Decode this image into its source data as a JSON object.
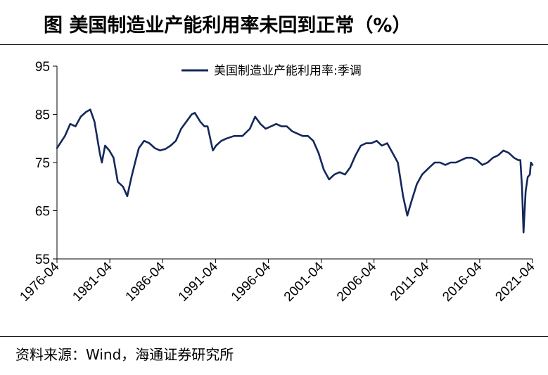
{
  "header": {
    "title": "图  美国制造业产能利用率未回到正常（%）"
  },
  "footer": {
    "source": "资料来源：Wind，海通证券研究所"
  },
  "colors": {
    "series": "#14285a",
    "axis": "#000000",
    "background": "#ffffff"
  },
  "chart_data": {
    "type": "line",
    "title": "美国制造业产能利用率未回到正常（%）",
    "xlabel": "",
    "ylabel": "",
    "ylim": [
      55,
      95
    ],
    "yticks": [
      55,
      65,
      75,
      85,
      95
    ],
    "xlim": [
      1976.25,
      2021.25
    ],
    "xticks": [
      "1976-04",
      "1981-04",
      "1986-04",
      "1991-04",
      "1996-04",
      "2001-04",
      "2006-04",
      "2011-04",
      "2016-04",
      "2021-04"
    ],
    "legend": {
      "position": "top-center"
    },
    "grid": false,
    "series": [
      {
        "name": "美国制造业产能利用率:季调",
        "x": [
          1976.25,
          1977.0,
          1977.5,
          1978.0,
          1978.5,
          1979.0,
          1979.4,
          1979.8,
          1980.3,
          1980.5,
          1980.8,
          1981.2,
          1981.6,
          1982.0,
          1982.5,
          1982.9,
          1983.3,
          1983.7,
          1984.0,
          1984.5,
          1985.0,
          1985.5,
          1986.0,
          1986.5,
          1987.0,
          1987.5,
          1988.0,
          1988.5,
          1989.0,
          1989.3,
          1989.8,
          1990.2,
          1990.5,
          1991.0,
          1991.3,
          1991.8,
          1992.3,
          1993.0,
          1993.8,
          1994.5,
          1995.0,
          1995.5,
          1996.0,
          1996.5,
          1997.0,
          1997.5,
          1998.0,
          1998.5,
          1999.0,
          1999.5,
          2000.0,
          2000.5,
          2001.0,
          2001.5,
          2002.0,
          2002.5,
          2003.0,
          2003.5,
          2004.0,
          2004.5,
          2005.0,
          2005.5,
          2006.0,
          2006.5,
          2007.0,
          2007.5,
          2008.0,
          2008.5,
          2009.0,
          2009.4,
          2009.8,
          2010.3,
          2010.8,
          2011.5,
          2012.0,
          2012.5,
          2013.0,
          2013.5,
          2014.0,
          2014.5,
          2015.0,
          2015.5,
          2016.0,
          2016.5,
          2017.0,
          2017.5,
          2018.0,
          2018.5,
          2019.0,
          2019.5,
          2019.9,
          2020.1,
          2020.25,
          2020.4,
          2020.6,
          2020.8,
          2021.0,
          2021.1,
          2021.25
        ],
        "values": [
          78.0,
          80.5,
          83.0,
          82.5,
          84.5,
          85.5,
          86.0,
          83.5,
          77.0,
          75.0,
          78.5,
          77.5,
          76.0,
          71.0,
          70.0,
          68.0,
          72.0,
          75.5,
          78.0,
          79.5,
          79.0,
          78.0,
          77.5,
          77.8,
          78.5,
          79.5,
          82.0,
          83.5,
          85.0,
          85.3,
          83.5,
          82.5,
          82.5,
          77.5,
          78.5,
          79.5,
          80.0,
          80.5,
          80.5,
          82.0,
          84.5,
          83.0,
          82.0,
          82.5,
          83.0,
          82.5,
          82.5,
          81.5,
          81.0,
          80.5,
          80.5,
          79.5,
          77.0,
          73.5,
          71.5,
          72.5,
          73.0,
          72.5,
          74.0,
          76.5,
          78.5,
          79.0,
          79.0,
          79.5,
          78.5,
          79.0,
          77.0,
          75.0,
          68.0,
          64.0,
          67.0,
          70.5,
          72.5,
          74.0,
          75.0,
          75.0,
          74.5,
          75.0,
          75.0,
          75.5,
          76.0,
          76.0,
          75.5,
          74.5,
          75.0,
          76.0,
          76.5,
          77.5,
          77.0,
          76.0,
          75.5,
          75.5,
          70.0,
          60.5,
          69.0,
          72.0,
          72.5,
          75.0,
          74.5
        ]
      }
    ]
  }
}
